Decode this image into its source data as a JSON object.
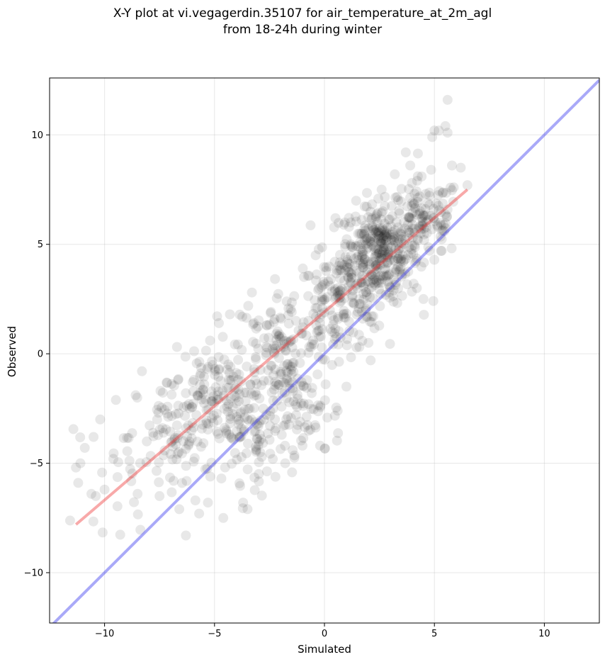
{
  "chart_data": {
    "type": "scatter",
    "title_line1": "X-Y plot at vi.vegagerdin.35107 for air_temperature_at_2m_agl",
    "title_line2": "from 18-24h during winter",
    "xlabel": "Simulated",
    "ylabel": "Observed",
    "xlim": [
      -12.5,
      12.5
    ],
    "ylim": [
      -12.3,
      12.6
    ],
    "xticks": [
      -10,
      -5,
      0,
      5,
      10
    ],
    "yticks": [
      -10,
      -5,
      0,
      5,
      10
    ],
    "xtick_labels": [
      "−10",
      "−5",
      "0",
      "5",
      "10"
    ],
    "ytick_labels": [
      "−10",
      "−5",
      "0",
      "5",
      "10"
    ],
    "grid": true,
    "point_color": "#000000",
    "point_opacity": 0.09,
    "identity_line": {
      "x": [
        -12.5,
        12.5
      ],
      "y": [
        -12.5,
        12.5
      ],
      "color": "#3333ee"
    },
    "fit_line": {
      "x": [
        -11.3,
        6.5
      ],
      "y": [
        -7.8,
        7.5
      ],
      "color": "#ee3333"
    },
    "clusters": [
      {
        "cx": 2.5,
        "cy": 4.6,
        "sx": 0.9,
        "sy": 1.1,
        "n": 340
      },
      {
        "cx": 4.6,
        "cy": 6.2,
        "sx": 0.8,
        "sy": 0.9,
        "n": 110
      },
      {
        "cx": 0.6,
        "cy": 2.3,
        "sx": 1.0,
        "sy": 1.1,
        "n": 150
      },
      {
        "cx": -2.0,
        "cy": 0.3,
        "sx": 1.1,
        "sy": 1.3,
        "n": 130
      },
      {
        "cx": -5.2,
        "cy": -1.8,
        "sx": 0.9,
        "sy": 1.1,
        "n": 110
      },
      {
        "cx": -6.5,
        "cy": -3.8,
        "sx": 1.0,
        "sy": 1.3,
        "n": 80
      },
      {
        "cx": -3.3,
        "cy": -3.6,
        "sx": 0.9,
        "sy": 1.1,
        "n": 90
      },
      {
        "cx": -1.0,
        "cy": -2.8,
        "sx": 0.9,
        "sy": 1.0,
        "n": 70
      },
      {
        "cx": -9.0,
        "cy": -5.2,
        "sx": 1.2,
        "sy": 1.4,
        "n": 35
      }
    ],
    "points": [
      [
        5.6,
        11.6
      ],
      [
        5.5,
        10.4
      ],
      [
        5.6,
        10.1
      ],
      [
        5.0,
        10.2
      ],
      [
        4.9,
        9.9
      ],
      [
        5.2,
        10.2
      ],
      [
        3.7,
        9.2
      ],
      [
        3.9,
        8.6
      ],
      [
        3.2,
        8.2
      ],
      [
        5.8,
        8.6
      ],
      [
        6.2,
        8.5
      ],
      [
        6.5,
        7.7
      ],
      [
        2.6,
        7.5
      ],
      [
        -10.2,
        -3.0
      ],
      [
        -10.5,
        -3.8
      ],
      [
        -11.3,
        -5.2
      ],
      [
        -11.1,
        -5.0
      ],
      [
        -11.2,
        -5.9
      ],
      [
        -10.9,
        -4.3
      ],
      [
        -10.6,
        -6.4
      ],
      [
        -10.4,
        -6.5
      ],
      [
        -9.6,
        -4.8
      ],
      [
        -8.3,
        -0.8
      ],
      [
        -6.3,
        -8.3
      ],
      [
        -6.6,
        -7.1
      ],
      [
        -5.7,
        -7.3
      ],
      [
        -5.3,
        -6.8
      ],
      [
        -4.6,
        -7.5
      ],
      [
        -3.5,
        -7.1
      ],
      [
        -3.7,
        -6.8
      ],
      [
        -4.3,
        1.8
      ],
      [
        -3.3,
        2.8
      ],
      [
        -4.8,
        1.4
      ],
      [
        0.5,
        6.2
      ],
      [
        1.2,
        6.0
      ],
      [
        -0.4,
        4.5
      ],
      [
        -1.0,
        -4.2
      ],
      [
        -0.2,
        -4.2
      ],
      [
        0.6,
        -2.6
      ],
      [
        1.0,
        -1.5
      ],
      [
        2.1,
        -0.3
      ],
      [
        2.0,
        0.5
      ],
      [
        1.2,
        5.0
      ],
      [
        4.5,
        2.5
      ],
      [
        5.3,
        4.7
      ],
      [
        4.2,
        3.0
      ],
      [
        -7.5,
        -6.5
      ],
      [
        -8.5,
        -6.4
      ]
    ]
  }
}
